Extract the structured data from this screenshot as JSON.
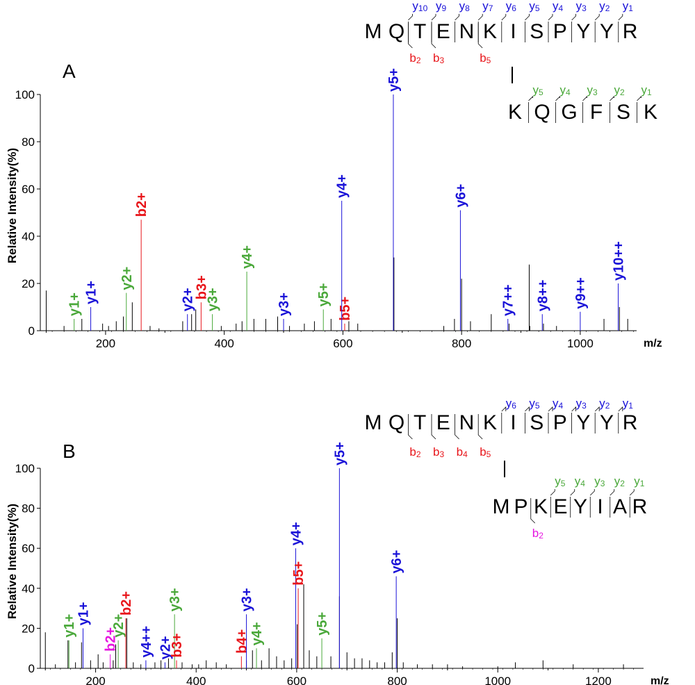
{
  "colors": {
    "b": "#e8151a",
    "y_alpha": "#1a12d8",
    "y_beta": "#4aa83a",
    "b_beta": "#e616e0",
    "noise": "#000000",
    "residue": "#000000"
  },
  "chart_data": [
    {
      "type": "bar",
      "panel_label": "A",
      "ylabel": "Relative Intensity(%)",
      "xlabel": "m/z",
      "xlim": [
        90,
        1095
      ],
      "ylim": [
        0,
        100
      ],
      "xticks": [
        200,
        400,
        600,
        800,
        1000
      ],
      "yticks": [
        0,
        20,
        40,
        60,
        80,
        100
      ],
      "peptide_alpha": {
        "residues": [
          "M",
          "Q",
          "T",
          "E",
          "N",
          "K",
          "I",
          "S",
          "P",
          "Y",
          "Y",
          "R"
        ],
        "y_labels": [
          {
            "name": "y",
            "sub": "10",
            "gap": 2
          },
          {
            "name": "y",
            "sub": "9",
            "gap": 3
          },
          {
            "name": "y",
            "sub": "8",
            "gap": 4
          },
          {
            "name": "y",
            "sub": "7",
            "gap": 5
          },
          {
            "name": "y",
            "sub": "6",
            "gap": 6
          },
          {
            "name": "y",
            "sub": "5",
            "gap": 7
          },
          {
            "name": "y",
            "sub": "4",
            "gap": 8
          },
          {
            "name": "y",
            "sub": "3",
            "gap": 9
          },
          {
            "name": "y",
            "sub": "2",
            "gap": 10
          },
          {
            "name": "y",
            "sub": "1",
            "gap": 11
          }
        ],
        "b_labels": [
          {
            "name": "b",
            "sub": "2",
            "gap": 2
          },
          {
            "name": "b",
            "sub": "3",
            "gap": 3
          },
          {
            "name": "b",
            "sub": "5",
            "gap": 5
          }
        ]
      },
      "peptide_beta": {
        "residues": [
          "K",
          "Q",
          "G",
          "F",
          "S",
          "K"
        ],
        "y_labels": [
          {
            "name": "y",
            "sub": "5",
            "gap": 1
          },
          {
            "name": "y",
            "sub": "4",
            "gap": 2
          },
          {
            "name": "y",
            "sub": "3",
            "gap": 3
          },
          {
            "name": "y",
            "sub": "2",
            "gap": 4
          },
          {
            "name": "y",
            "sub": "1",
            "gap": 5
          }
        ],
        "b_labels": []
      },
      "peaks": [
        {
          "label": "y1+",
          "mz": 147,
          "intensity": 5,
          "ion": "y_beta"
        },
        {
          "label": "y1+",
          "mz": 175,
          "intensity": 10,
          "ion": "y_alpha"
        },
        {
          "label": "y2+",
          "mz": 235,
          "intensity": 16,
          "ion": "y_beta"
        },
        {
          "label": "b2+",
          "mz": 260,
          "intensity": 47,
          "ion": "b"
        },
        {
          "label": "y2+",
          "mz": 338,
          "intensity": 7,
          "ion": "y_alpha"
        },
        {
          "label": "b3+",
          "mz": 361,
          "intensity": 12,
          "ion": "b"
        },
        {
          "label": "y3+",
          "mz": 380,
          "intensity": 7,
          "ion": "y_beta"
        },
        {
          "label": "y4+",
          "mz": 438,
          "intensity": 25,
          "ion": "y_beta"
        },
        {
          "label": "y3+",
          "mz": 500,
          "intensity": 5,
          "ion": "y_alpha"
        },
        {
          "label": "y5+",
          "mz": 567,
          "intensity": 9,
          "ion": "y_beta"
        },
        {
          "label": "b5+",
          "mz": 603,
          "intensity": 3,
          "ion": "b"
        },
        {
          "label": "y4+",
          "mz": 598,
          "intensity": 55,
          "ion": "y_alpha"
        },
        {
          "label": "y5+",
          "mz": 685,
          "intensity": 100,
          "ion": "y_alpha"
        },
        {
          "label": "y6+",
          "mz": 798,
          "intensity": 51,
          "ion": "y_alpha"
        },
        {
          "label": "y7++",
          "mz": 878,
          "intensity": 5,
          "ion": "y_alpha"
        },
        {
          "label": "y8++",
          "mz": 936,
          "intensity": 7,
          "ion": "y_alpha"
        },
        {
          "label": "y9++",
          "mz": 1000,
          "intensity": 8,
          "ion": "y_alpha"
        },
        {
          "label": "y10++",
          "mz": 1064,
          "intensity": 20,
          "ion": "y_alpha"
        }
      ],
      "noise_peaks": [
        [
          100,
          17
        ],
        [
          130,
          2
        ],
        [
          160,
          5
        ],
        [
          195,
          3
        ],
        [
          205,
          2
        ],
        [
          218,
          4
        ],
        [
          230,
          6
        ],
        [
          245,
          12
        ],
        [
          275,
          2
        ],
        [
          290,
          1
        ],
        [
          330,
          4
        ],
        [
          345,
          7
        ],
        [
          352,
          9
        ],
        [
          395,
          2
        ],
        [
          420,
          3
        ],
        [
          430,
          4
        ],
        [
          450,
          5
        ],
        [
          470,
          5
        ],
        [
          490,
          6
        ],
        [
          510,
          2
        ],
        [
          535,
          3
        ],
        [
          552,
          4
        ],
        [
          580,
          5
        ],
        [
          610,
          4
        ],
        [
          625,
          3
        ],
        [
          686,
          31
        ],
        [
          770,
          2
        ],
        [
          788,
          5
        ],
        [
          800,
          22
        ],
        [
          815,
          4
        ],
        [
          850,
          7
        ],
        [
          880,
          3
        ],
        [
          914,
          28
        ],
        [
          915,
          2
        ],
        [
          938,
          3
        ],
        [
          960,
          2
        ],
        [
          1040,
          5
        ],
        [
          1066,
          10
        ],
        [
          1080,
          5
        ]
      ]
    },
    {
      "type": "bar",
      "panel_label": "B",
      "ylabel": "Relative Intensity(%)",
      "xlabel": "m/z",
      "xlim": [
        90,
        1290
      ],
      "ylim": [
        0,
        100
      ],
      "xticks": [
        200,
        400,
        600,
        800,
        1000,
        1200
      ],
      "yticks": [
        0,
        20,
        40,
        60,
        80,
        100
      ],
      "peptide_alpha": {
        "residues": [
          "M",
          "Q",
          "T",
          "E",
          "N",
          "K",
          "I",
          "S",
          "P",
          "Y",
          "Y",
          "R"
        ],
        "y_labels": [
          {
            "name": "y",
            "sub": "6",
            "gap": 6
          },
          {
            "name": "y",
            "sub": "5",
            "gap": 7
          },
          {
            "name": "y",
            "sub": "4",
            "gap": 8
          },
          {
            "name": "y",
            "sub": "3",
            "gap": 9
          },
          {
            "name": "y",
            "sub": "2",
            "gap": 10
          },
          {
            "name": "y",
            "sub": "1",
            "gap": 11
          }
        ],
        "b_labels": [
          {
            "name": "b",
            "sub": "2",
            "gap": 2
          },
          {
            "name": "b",
            "sub": "3",
            "gap": 3
          },
          {
            "name": "b",
            "sub": "4",
            "gap": 4
          },
          {
            "name": "b",
            "sub": "5",
            "gap": 5
          }
        ]
      },
      "peptide_beta": {
        "residues": [
          "M",
          "P",
          "K",
          "E",
          "Y",
          "I",
          "A",
          "R"
        ],
        "y_labels": [
          {
            "name": "y",
            "sub": "5",
            "gap": 3
          },
          {
            "name": "y",
            "sub": "4",
            "gap": 4
          },
          {
            "name": "y",
            "sub": "3",
            "gap": 5
          },
          {
            "name": "y",
            "sub": "2",
            "gap": 6
          },
          {
            "name": "y",
            "sub": "1",
            "gap": 7
          }
        ],
        "b_labels": [
          {
            "name": "b",
            "sub": "2",
            "gap": 2
          }
        ]
      },
      "peaks": [
        {
          "label": "y1+",
          "mz": 147,
          "intensity": 14,
          "ion": "y_beta"
        },
        {
          "label": "y1+",
          "mz": 175,
          "intensity": 20,
          "ion": "y_alpha"
        },
        {
          "label": "b2+",
          "mz": 229,
          "intensity": 7,
          "ion": "b_beta"
        },
        {
          "label": "y2+",
          "mz": 245,
          "intensity": 14,
          "ion": "y_beta"
        },
        {
          "label": "b2+",
          "mz": 260,
          "intensity": 25,
          "ion": "b"
        },
        {
          "label": "y4++",
          "mz": 300,
          "intensity": 4,
          "ion": "y_alpha"
        },
        {
          "label": "y2+",
          "mz": 338,
          "intensity": 3,
          "ion": "y_alpha"
        },
        {
          "label": "y3+",
          "mz": 357,
          "intensity": 27,
          "ion": "y_beta"
        },
        {
          "label": "b3+",
          "mz": 361,
          "intensity": 4,
          "ion": "b"
        },
        {
          "label": "b4+",
          "mz": 490,
          "intensity": 6,
          "ion": "b"
        },
        {
          "label": "y3+",
          "mz": 500,
          "intensity": 27,
          "ion": "y_alpha"
        },
        {
          "label": "y4+",
          "mz": 520,
          "intensity": 10,
          "ion": "y_beta"
        },
        {
          "label": "y4+",
          "mz": 598,
          "intensity": 60,
          "ion": "y_alpha"
        },
        {
          "label": "b5+",
          "mz": 603,
          "intensity": 40,
          "ion": "b"
        },
        {
          "label": "y5+",
          "mz": 650,
          "intensity": 15,
          "ion": "y_beta"
        },
        {
          "label": "y5+",
          "mz": 685,
          "intensity": 100,
          "ion": "y_alpha"
        },
        {
          "label": "y6+",
          "mz": 798,
          "intensity": 46,
          "ion": "y_alpha"
        }
      ],
      "noise_peaks": [
        [
          100,
          18
        ],
        [
          120,
          2
        ],
        [
          145,
          14
        ],
        [
          160,
          3
        ],
        [
          172,
          13
        ],
        [
          190,
          4
        ],
        [
          205,
          7
        ],
        [
          215,
          3
        ],
        [
          235,
          4
        ],
        [
          240,
          12
        ],
        [
          262,
          25
        ],
        [
          275,
          3
        ],
        [
          290,
          2
        ],
        [
          318,
          3
        ],
        [
          330,
          4
        ],
        [
          345,
          5
        ],
        [
          372,
          3
        ],
        [
          392,
          2
        ],
        [
          405,
          2
        ],
        [
          420,
          4
        ],
        [
          440,
          3
        ],
        [
          460,
          2
        ],
        [
          500,
          4
        ],
        [
          512,
          9
        ],
        [
          530,
          4
        ],
        [
          545,
          10
        ],
        [
          560,
          6
        ],
        [
          575,
          4
        ],
        [
          590,
          5
        ],
        [
          601,
          22
        ],
        [
          614,
          42
        ],
        [
          625,
          9
        ],
        [
          640,
          6
        ],
        [
          668,
          6
        ],
        [
          685,
          36
        ],
        [
          700,
          8
        ],
        [
          715,
          5
        ],
        [
          730,
          5
        ],
        [
          745,
          4
        ],
        [
          760,
          3
        ],
        [
          775,
          3
        ],
        [
          790,
          8
        ],
        [
          800,
          25
        ],
        [
          812,
          3
        ],
        [
          840,
          2
        ],
        [
          870,
          2
        ],
        [
          900,
          2
        ],
        [
          930,
          1
        ],
        [
          1000,
          1
        ],
        [
          1035,
          3
        ],
        [
          1090,
          4
        ],
        [
          1150,
          2
        ],
        [
          1250,
          2
        ]
      ]
    }
  ]
}
